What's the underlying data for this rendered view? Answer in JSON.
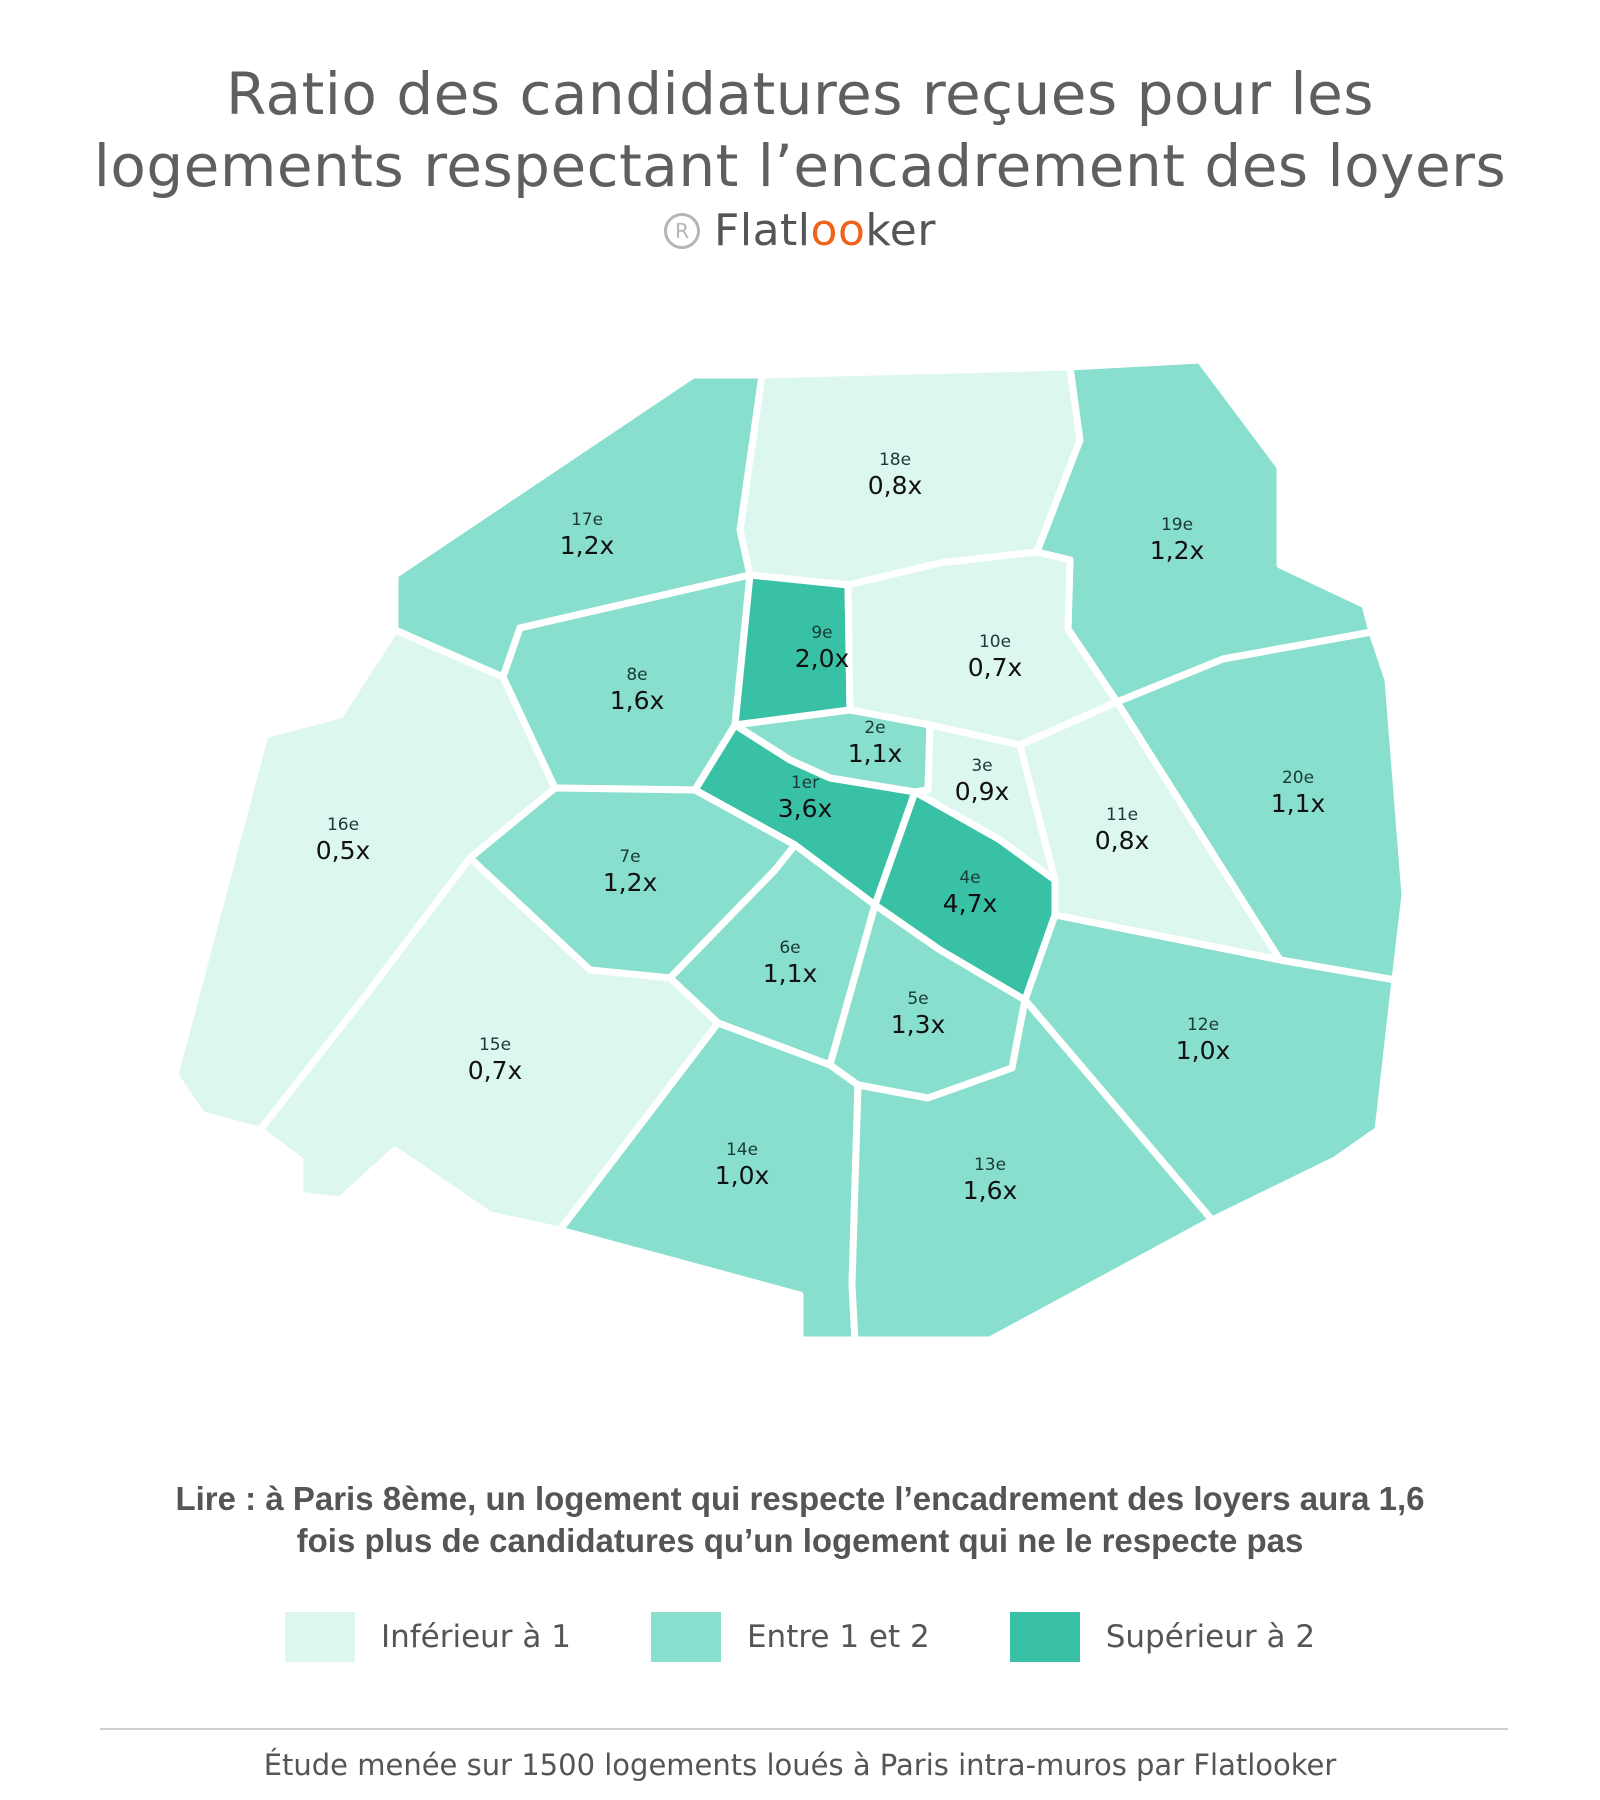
{
  "header": {
    "title_line1": "Ratio des candidatures reçues pour les",
    "title_line2": "logements respectant l’encadrement des loyers",
    "brand_prefix": "Flatl",
    "brand_oo": "oo",
    "brand_suffix": "ker",
    "registered_symbol": "R"
  },
  "colors": {
    "low": "#dcf6f0",
    "mid": "#88dfcd",
    "high": "#39c1a6",
    "brand_accent": "#f0631c"
  },
  "map": {
    "districts": [
      {
        "id": "1",
        "name": "1er",
        "value": "3,6x",
        "level": "high"
      },
      {
        "id": "2",
        "name": "2e",
        "value": "1,1x",
        "level": "mid"
      },
      {
        "id": "3",
        "name": "3e",
        "value": "0,9x",
        "level": "low"
      },
      {
        "id": "4",
        "name": "4e",
        "value": "4,7x",
        "level": "high"
      },
      {
        "id": "5",
        "name": "5e",
        "value": "1,3x",
        "level": "mid"
      },
      {
        "id": "6",
        "name": "6e",
        "value": "1,1x",
        "level": "mid"
      },
      {
        "id": "7",
        "name": "7e",
        "value": "1,2x",
        "level": "mid"
      },
      {
        "id": "8",
        "name": "8e",
        "value": "1,6x",
        "level": "mid"
      },
      {
        "id": "9",
        "name": "9e",
        "value": "2,0x",
        "level": "high"
      },
      {
        "id": "10",
        "name": "10e",
        "value": "0,7x",
        "level": "low"
      },
      {
        "id": "11",
        "name": "11e",
        "value": "0,8x",
        "level": "low"
      },
      {
        "id": "12",
        "name": "12e",
        "value": "1,0x",
        "level": "mid"
      },
      {
        "id": "13",
        "name": "13e",
        "value": "1,6x",
        "level": "mid"
      },
      {
        "id": "14",
        "name": "14e",
        "value": "1,0x",
        "level": "mid"
      },
      {
        "id": "15",
        "name": "15e",
        "value": "0,7x",
        "level": "low"
      },
      {
        "id": "16",
        "name": "16e",
        "value": "0,5x",
        "level": "low"
      },
      {
        "id": "17",
        "name": "17e",
        "value": "1,2x",
        "level": "mid"
      },
      {
        "id": "18",
        "name": "18e",
        "value": "0,8x",
        "level": "low"
      },
      {
        "id": "19",
        "name": "19e",
        "value": "1,2x",
        "level": "mid"
      },
      {
        "id": "20",
        "name": "20e",
        "value": "1,1x",
        "level": "mid"
      }
    ]
  },
  "reading_note": {
    "line1": "Lire : à Paris 8ème, un logement qui respecte l’encadrement des loyers aura 1,6",
    "line2": "fois plus de candidatures qu’un logement qui ne le respecte pas"
  },
  "legend": {
    "items": [
      {
        "label": "Inférieur à 1",
        "level": "low"
      },
      {
        "label": "Entre 1 et 2",
        "level": "mid"
      },
      {
        "label": "Supérieur à 2",
        "level": "high"
      }
    ]
  },
  "footer": {
    "text": "Étude menée sur 1500 logements loués à Paris intra-muros par Flatlooker"
  }
}
